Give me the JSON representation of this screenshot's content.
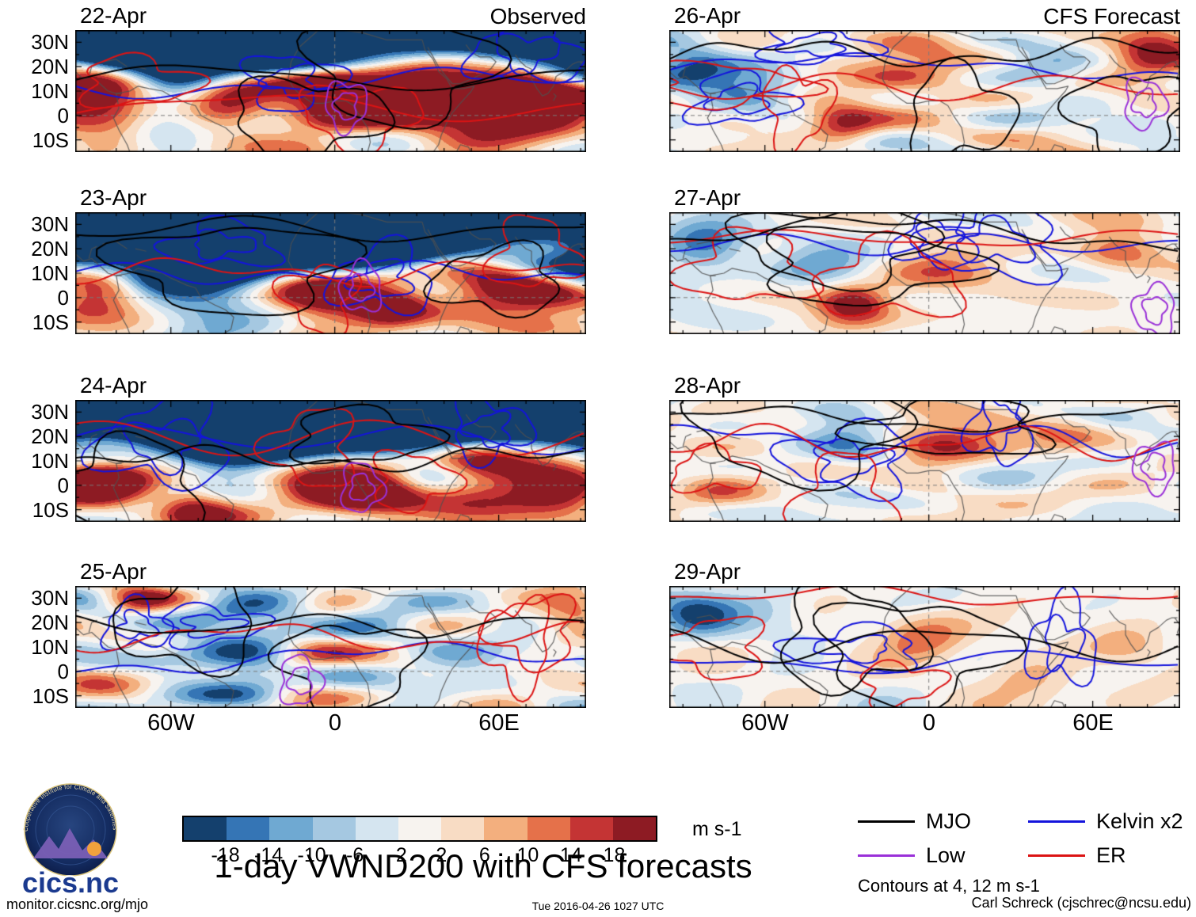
{
  "chart_data": {
    "type": "heatmap",
    "title": "1-day VWND200 with CFS forecasts",
    "column_titles": [
      "Observed",
      "CFS Forecast"
    ],
    "x_tick_labels": [
      "60W",
      "0",
      "60E"
    ],
    "y_tick_labels": [
      "30N",
      "20N",
      "10N",
      "0",
      "10S"
    ],
    "lon_range": [
      -95,
      92
    ],
    "lat_range": [
      -15,
      35
    ],
    "colorbar": {
      "units": "m s-1",
      "tick_labels": [
        "-18",
        "-14",
        "-10",
        "-6",
        "-2",
        "2",
        "6",
        "10",
        "14",
        "18"
      ],
      "colors": [
        "#14406d",
        "#3575b5",
        "#6fa9d2",
        "#a5c8e1",
        "#d5e5f0",
        "#f7f3ef",
        "#f8dcc4",
        "#f3af7e",
        "#e5714a",
        "#c43434",
        "#8d1b23"
      ]
    },
    "legend": {
      "items": [
        {
          "label": "MJO",
          "color": "#000000"
        },
        {
          "label": "Low",
          "color": "#9a30d8"
        },
        {
          "label": "Kelvin x2",
          "color": "#1414dc"
        },
        {
          "label": "ER",
          "color": "#dc1414"
        }
      ],
      "note": "Contours at 4, 12 m s-1"
    },
    "panels": [
      {
        "date": "22-Apr",
        "column": "Observed",
        "field_hints": {
          "seed": 101,
          "amplitude": 9,
          "navy_band": 0.32,
          "purple": [
            0.53,
            0.62
          ],
          "features": [
            [
              0.04,
              0.58,
              28,
              0.08
            ],
            [
              0.3,
              0.55,
              22,
              0.06
            ],
            [
              0.5,
              0.6,
              28,
              0.08
            ],
            [
              0.73,
              0.5,
              30,
              0.12
            ],
            [
              0.93,
              0.52,
              26,
              0.09
            ],
            [
              0.18,
              0.78,
              -12,
              0.06
            ]
          ]
        }
      },
      {
        "date": "23-Apr",
        "column": "Observed",
        "field_hints": {
          "seed": 102,
          "amplitude": 9,
          "navy_band": 0.5,
          "purple": [
            0.56,
            0.62
          ],
          "features": [
            [
              0.05,
              0.62,
              26,
              0.07
            ],
            [
              0.27,
              0.72,
              -16,
              0.09
            ],
            [
              0.49,
              0.67,
              28,
              0.08
            ],
            [
              0.62,
              0.78,
              20,
              0.05
            ],
            [
              0.88,
              0.55,
              30,
              0.11
            ]
          ]
        }
      },
      {
        "date": "24-Apr",
        "column": "Observed",
        "field_hints": {
          "seed": 103,
          "amplitude": 9,
          "navy_band": 0.42,
          "purple": [
            0.56,
            0.72
          ],
          "features": [
            [
              0.05,
              0.72,
              26,
              0.07
            ],
            [
              0.23,
              0.85,
              18,
              0.05
            ],
            [
              0.54,
              0.74,
              30,
              0.09
            ],
            [
              0.7,
              0.6,
              -10,
              0.05
            ],
            [
              0.8,
              0.68,
              18,
              0.08
            ],
            [
              0.96,
              0.72,
              26,
              0.07
            ]
          ]
        }
      },
      {
        "date": "25-Apr",
        "column": "Observed",
        "field_hints": {
          "seed": 104,
          "amplitude": 8,
          "navy_band": null,
          "purple": [
            0.44,
            0.78
          ],
          "features": [
            [
              0.12,
              0.12,
              16,
              0.05
            ],
            [
              0.3,
              0.35,
              -16,
              0.1
            ],
            [
              0.34,
              0.75,
              -12,
              0.06
            ],
            [
              0.46,
              0.5,
              10,
              0.06
            ],
            [
              0.6,
              0.22,
              -10,
              0.06
            ],
            [
              0.75,
              0.6,
              -8,
              0.07
            ],
            [
              0.97,
              0.2,
              14,
              0.05
            ]
          ]
        }
      },
      {
        "date": "26-Apr",
        "column": "CFS Forecast",
        "field_hints": {
          "seed": 105,
          "amplitude": 6.5,
          "navy_band": null,
          "purple": [
            0.93,
            0.6
          ],
          "features": [
            [
              0.04,
              0.3,
              -20,
              0.06
            ],
            [
              0.16,
              0.45,
              -10,
              0.06
            ],
            [
              0.34,
              0.78,
              20,
              0.05
            ],
            [
              0.47,
              0.3,
              12,
              0.09
            ],
            [
              0.73,
              0.25,
              -8,
              0.06
            ],
            [
              0.95,
              0.14,
              24,
              0.06
            ]
          ]
        }
      },
      {
        "date": "27-Apr",
        "column": "CFS Forecast",
        "field_hints": {
          "seed": 106,
          "amplitude": 6.5,
          "navy_band": null,
          "purple": [
            0.95,
            0.8
          ],
          "features": [
            [
              0.07,
              0.28,
              -18,
              0.06
            ],
            [
              0.3,
              0.4,
              -10,
              0.07
            ],
            [
              0.36,
              0.75,
              22,
              0.05
            ],
            [
              0.52,
              0.5,
              10,
              0.08
            ],
            [
              0.88,
              0.3,
              14,
              0.06
            ]
          ]
        }
      },
      {
        "date": "28-Apr",
        "column": "CFS Forecast",
        "field_hints": {
          "seed": 107,
          "amplitude": 6,
          "navy_band": null,
          "purple": [
            0.95,
            0.55
          ],
          "features": [
            [
              0.1,
              0.7,
              10,
              0.06
            ],
            [
              0.38,
              0.5,
              -10,
              0.07
            ],
            [
              0.52,
              0.38,
              16,
              0.08
            ],
            [
              0.78,
              0.22,
              8,
              0.06
            ],
            [
              0.33,
              0.18,
              -8,
              0.05
            ]
          ]
        }
      },
      {
        "date": "29-Apr",
        "column": "CFS Forecast",
        "field_hints": {
          "seed": 108,
          "amplitude": 6,
          "navy_band": null,
          "purple": null,
          "features": [
            [
              0.05,
              0.25,
              -16,
              0.06
            ],
            [
              0.2,
              0.15,
              -8,
              0.06
            ],
            [
              0.5,
              0.42,
              12,
              0.06
            ],
            [
              0.7,
              0.75,
              8,
              0.06
            ],
            [
              0.9,
              0.5,
              8,
              0.06
            ]
          ]
        }
      }
    ]
  },
  "logo": {
    "text": "cics.nc",
    "ring_text": "Cooperative Institute for Climate and Satellites"
  },
  "footer": {
    "left": "monitor.cicsnc.org/mjo",
    "center": "Tue 2016-04-26 1027 UTC",
    "right": "Carl Schreck (cjschrec@ncsu.edu)"
  }
}
